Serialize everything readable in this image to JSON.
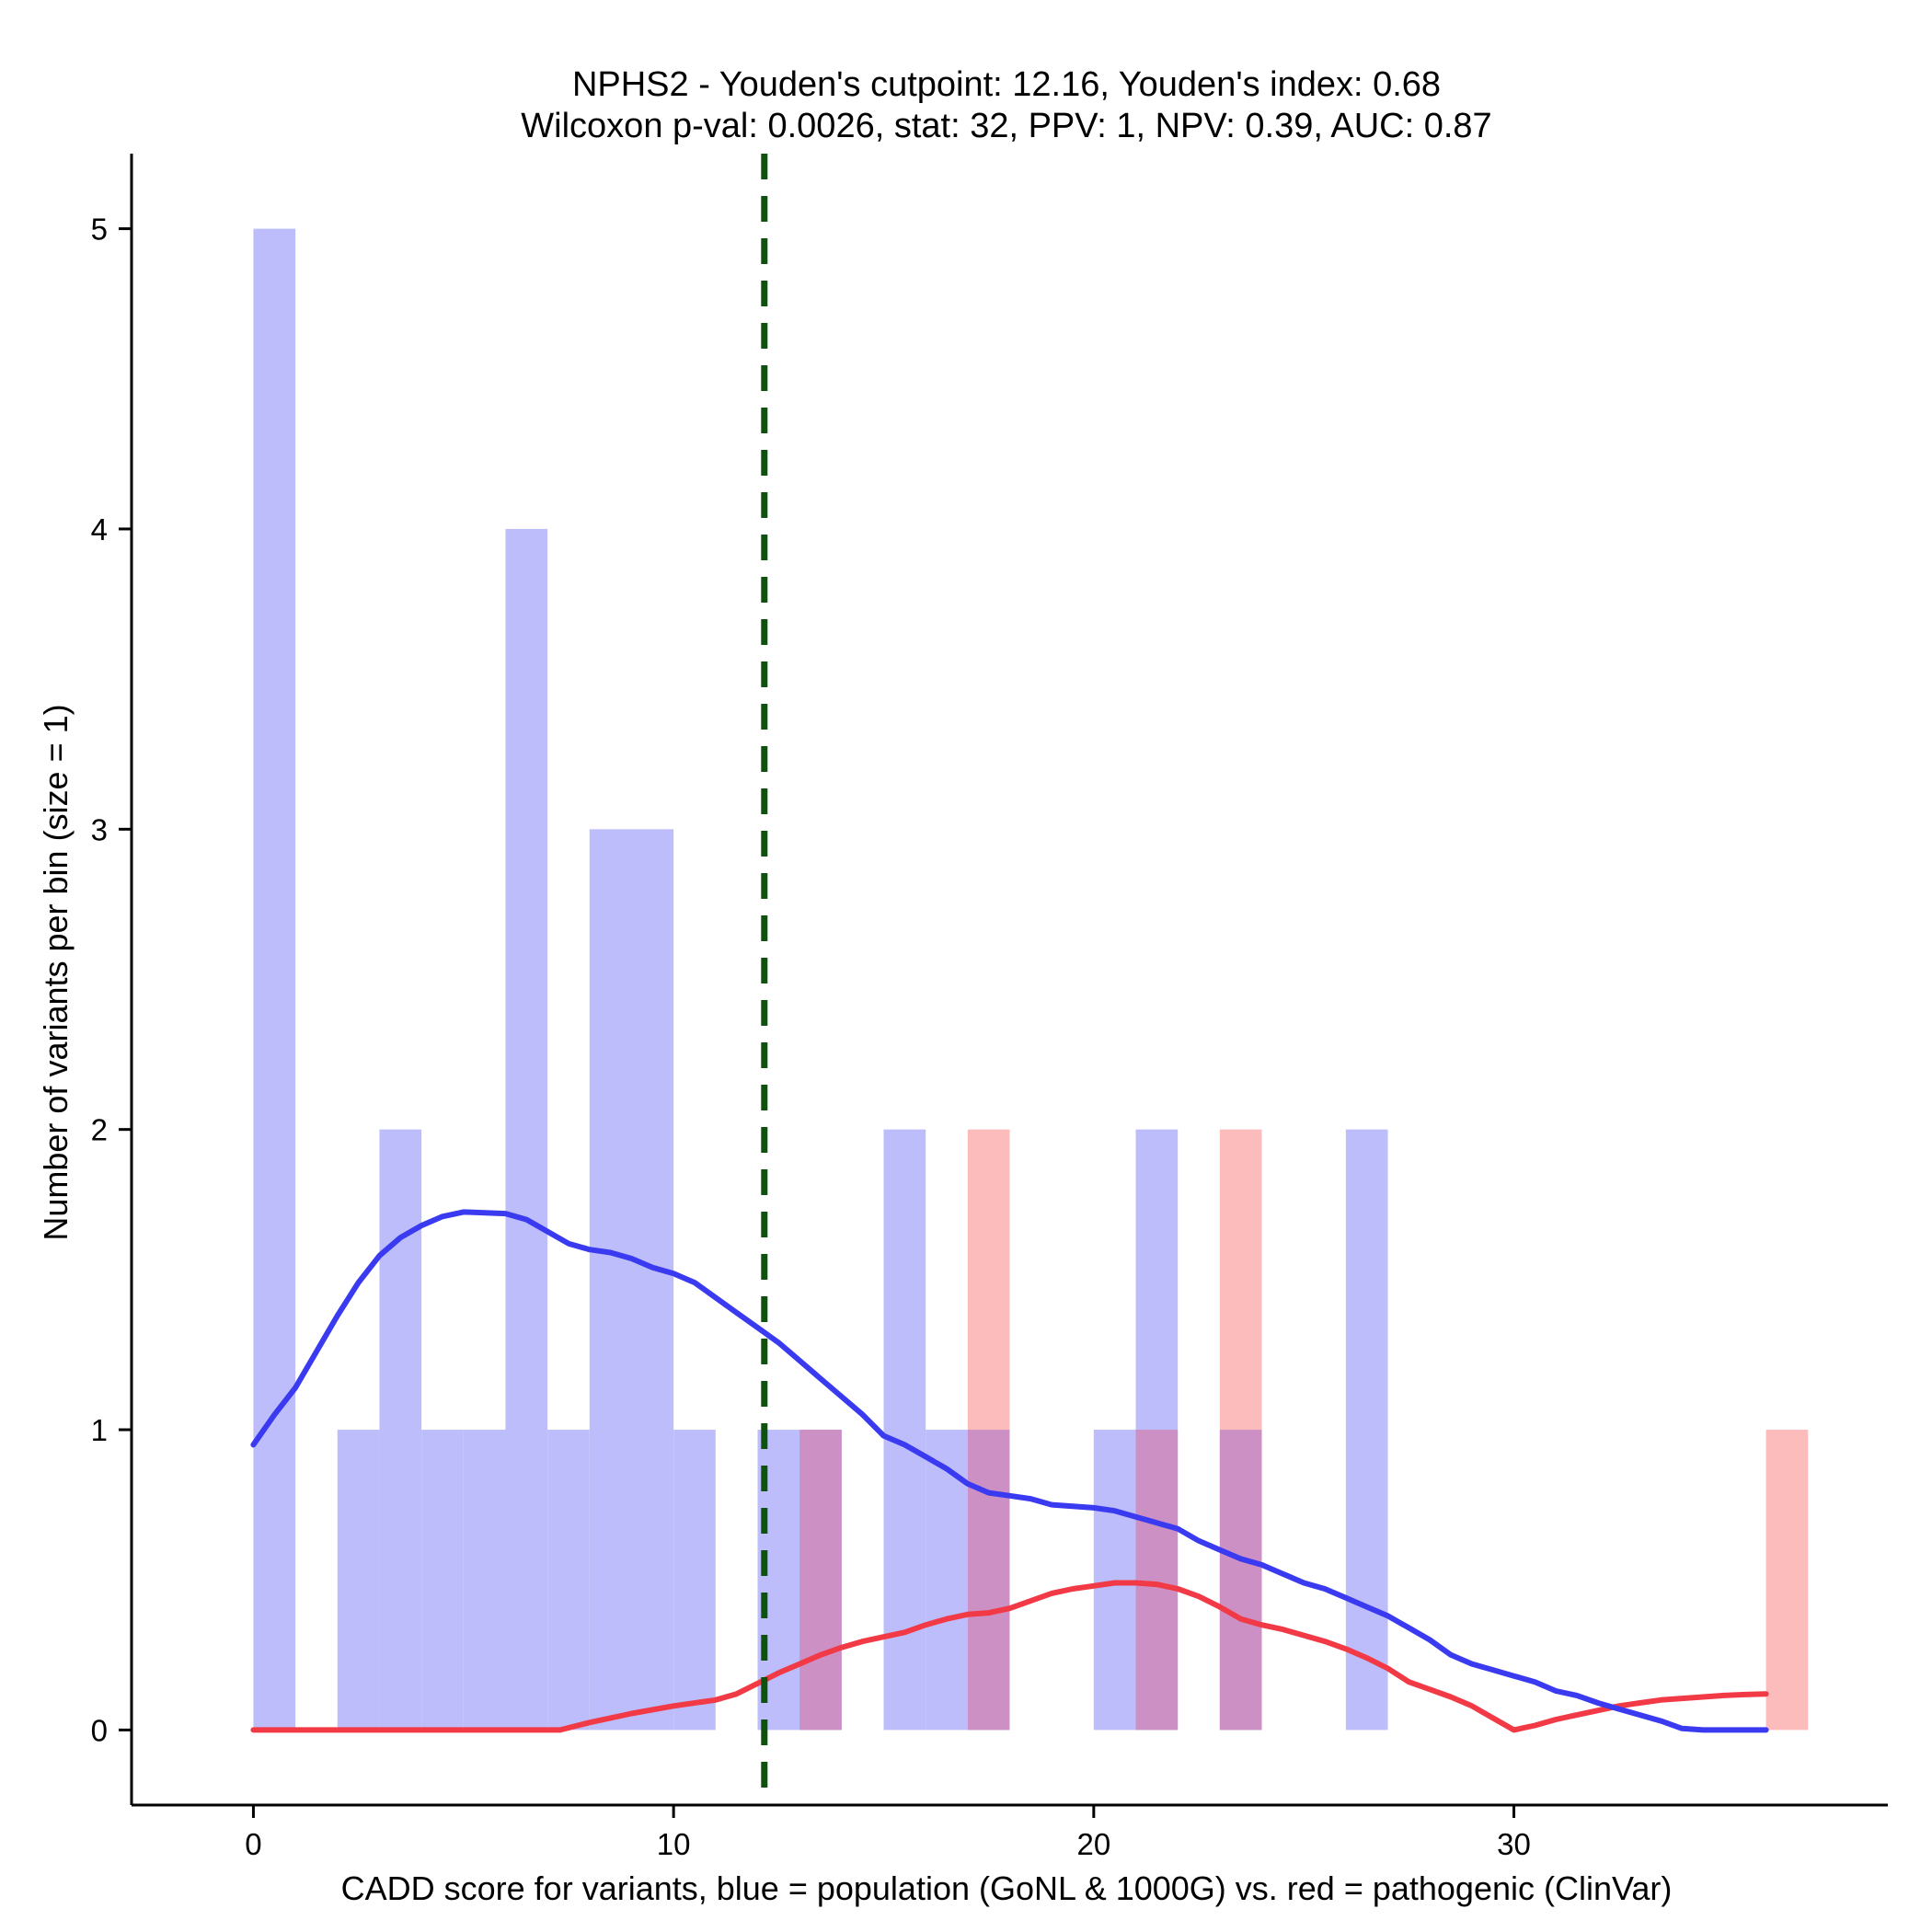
{
  "chart_data": {
    "type": "bar",
    "title_line1": "NPHS2 - Youden's cutpoint: 12.16, Youden's index: 0.68",
    "title_line2": "Wilcoxon p-val: 0.0026, stat: 32, PPV: 1, NPV: 0.39, AUC: 0.87",
    "xlabel": "CADD score for variants, blue = population (GoNL & 1000G) vs. red = pathogenic (ClinVar)",
    "ylabel": "Number of variants per bin (size = 1)",
    "xlim": [
      -2.9,
      38.9
    ],
    "ylim": [
      -0.25,
      5.25
    ],
    "xticks": [
      0,
      10,
      20,
      30
    ],
    "yticks": [
      0,
      1,
      2,
      3,
      4,
      5
    ],
    "bin_width": 1,
    "cutpoint": 12.16,
    "colors": {
      "population_bar": "#bdbdfb",
      "pathogenic_bar": "#fcbcbc",
      "overlap_bar": "#cc90c4",
      "population_line": "#3a3af0",
      "pathogenic_line": "#f23a46",
      "cutpoint_line": "#0d530d",
      "axis": "#000000"
    },
    "series": [
      {
        "name": "population (GoNL & 1000G)",
        "bins": [
          {
            "x": 0,
            "count": 5
          },
          {
            "x": 2,
            "count": 1
          },
          {
            "x": 3,
            "count": 2
          },
          {
            "x": 4,
            "count": 1
          },
          {
            "x": 5,
            "count": 1
          },
          {
            "x": 6,
            "count": 4
          },
          {
            "x": 7,
            "count": 1
          },
          {
            "x": 8,
            "count": 3
          },
          {
            "x": 9,
            "count": 3
          },
          {
            "x": 10,
            "count": 1
          },
          {
            "x": 12,
            "count": 1
          },
          {
            "x": 13,
            "count": 1
          },
          {
            "x": 15,
            "count": 2
          },
          {
            "x": 16,
            "count": 1
          },
          {
            "x": 17,
            "count": 1
          },
          {
            "x": 20,
            "count": 1
          },
          {
            "x": 21,
            "count": 2
          },
          {
            "x": 23,
            "count": 1
          },
          {
            "x": 26,
            "count": 2
          }
        ],
        "density_curve": [
          [
            0,
            0.95
          ],
          [
            0.5,
            1.05
          ],
          [
            1,
            1.14
          ],
          [
            1.5,
            1.26
          ],
          [
            2,
            1.38
          ],
          [
            2.5,
            1.49
          ],
          [
            3,
            1.58
          ],
          [
            3.5,
            1.64
          ],
          [
            4,
            1.68
          ],
          [
            4.5,
            1.71
          ],
          [
            5,
            1.725
          ],
          [
            6,
            1.72
          ],
          [
            6.5,
            1.7
          ],
          [
            7,
            1.66
          ],
          [
            7.5,
            1.62
          ],
          [
            8,
            1.6
          ],
          [
            8.5,
            1.59
          ],
          [
            9,
            1.57
          ],
          [
            9.5,
            1.54
          ],
          [
            10,
            1.52
          ],
          [
            10.5,
            1.49
          ],
          [
            11,
            1.44
          ],
          [
            11.5,
            1.39
          ],
          [
            12,
            1.34
          ],
          [
            12.5,
            1.29
          ],
          [
            13,
            1.23
          ],
          [
            13.5,
            1.17
          ],
          [
            14,
            1.11
          ],
          [
            14.5,
            1.05
          ],
          [
            15,
            0.98
          ],
          [
            15.5,
            0.95
          ],
          [
            16,
            0.91
          ],
          [
            16.5,
            0.87
          ],
          [
            17,
            0.82
          ],
          [
            17.5,
            0.79
          ],
          [
            18,
            0.78
          ],
          [
            18.5,
            0.77
          ],
          [
            19,
            0.75
          ],
          [
            19.5,
            0.745
          ],
          [
            20,
            0.74
          ],
          [
            20.5,
            0.73
          ],
          [
            21,
            0.71
          ],
          [
            21.5,
            0.69
          ],
          [
            22,
            0.67
          ],
          [
            22.5,
            0.63
          ],
          [
            23,
            0.6
          ],
          [
            23.5,
            0.57
          ],
          [
            24,
            0.55
          ],
          [
            24.5,
            0.52
          ],
          [
            25,
            0.49
          ],
          [
            25.5,
            0.47
          ],
          [
            26,
            0.44
          ],
          [
            26.5,
            0.41
          ],
          [
            27,
            0.38
          ],
          [
            27.5,
            0.34
          ],
          [
            28,
            0.3
          ],
          [
            28.5,
            0.25
          ],
          [
            29,
            0.22
          ],
          [
            29.5,
            0.2
          ],
          [
            30,
            0.18
          ],
          [
            30.5,
            0.16
          ],
          [
            31,
            0.13
          ],
          [
            31.5,
            0.115
          ],
          [
            32,
            0.09
          ],
          [
            32.5,
            0.07
          ],
          [
            33,
            0.05
          ],
          [
            33.5,
            0.03
          ],
          [
            34,
            0.005
          ],
          [
            34.5,
            0
          ],
          [
            36,
            0
          ]
        ]
      },
      {
        "name": "pathogenic (ClinVar)",
        "bins": [
          {
            "x": 13,
            "count": 1
          },
          {
            "x": 17,
            "count": 2
          },
          {
            "x": 21,
            "count": 1
          },
          {
            "x": 23,
            "count": 2
          },
          {
            "x": 36,
            "count": 1
          }
        ],
        "density_curve": [
          [
            0,
            0
          ],
          [
            7.3,
            0
          ],
          [
            8,
            0.025
          ],
          [
            9,
            0.055
          ],
          [
            10,
            0.08
          ],
          [
            11,
            0.1
          ],
          [
            11.5,
            0.12
          ],
          [
            12,
            0.155
          ],
          [
            12.5,
            0.19
          ],
          [
            13,
            0.22
          ],
          [
            13.5,
            0.25
          ],
          [
            14,
            0.275
          ],
          [
            14.5,
            0.295
          ],
          [
            15,
            0.31
          ],
          [
            15.5,
            0.325
          ],
          [
            16,
            0.35
          ],
          [
            16.5,
            0.37
          ],
          [
            17,
            0.385
          ],
          [
            17.5,
            0.39
          ],
          [
            18,
            0.405
          ],
          [
            18.5,
            0.43
          ],
          [
            19,
            0.455
          ],
          [
            19.5,
            0.47
          ],
          [
            20,
            0.48
          ],
          [
            20.5,
            0.49
          ],
          [
            21,
            0.49
          ],
          [
            21.5,
            0.485
          ],
          [
            22,
            0.47
          ],
          [
            22.5,
            0.445
          ],
          [
            23,
            0.41
          ],
          [
            23.5,
            0.37
          ],
          [
            24,
            0.35
          ],
          [
            24.5,
            0.335
          ],
          [
            25,
            0.315
          ],
          [
            25.5,
            0.295
          ],
          [
            26,
            0.27
          ],
          [
            26.5,
            0.24
          ],
          [
            27,
            0.205
          ],
          [
            27.5,
            0.16
          ],
          [
            28,
            0.135
          ],
          [
            28.5,
            0.11
          ],
          [
            29,
            0.08
          ],
          [
            29.5,
            0.04
          ],
          [
            30,
            0
          ],
          [
            30.5,
            0.015
          ],
          [
            31,
            0.035
          ],
          [
            31.5,
            0.05
          ],
          [
            32,
            0.065
          ],
          [
            32.5,
            0.08
          ],
          [
            33,
            0.09
          ],
          [
            33.5,
            0.1
          ],
          [
            34,
            0.105
          ],
          [
            34.5,
            0.11
          ],
          [
            35,
            0.115
          ],
          [
            35.5,
            0.118
          ],
          [
            36,
            0.12
          ]
        ]
      }
    ]
  }
}
